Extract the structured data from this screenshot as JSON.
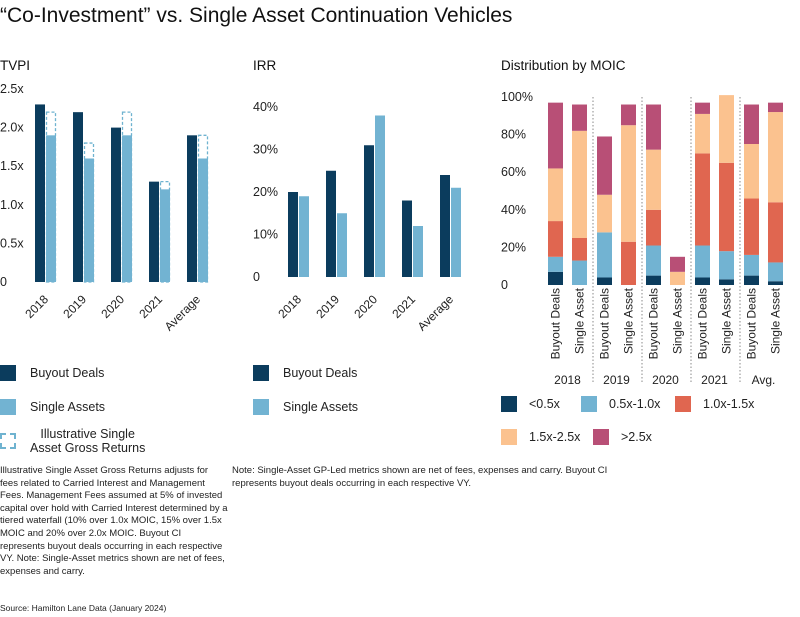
{
  "title": "“Co-Investment” vs. Single Asset Continuation Vehicles",
  "colors": {
    "buyout": "#0b3c5d",
    "single": "#72b3d2",
    "illustrative": "#6fb3d0",
    "lt05": "#0b3c5d",
    "b05_10": "#72b3d2",
    "b10_15": "#e06650",
    "b15_25": "#fbc28f",
    "gt25": "#b84f76",
    "divider": "#8a8a8a"
  },
  "chart_data": [
    {
      "type": "bar",
      "title": "TVPI",
      "categories": [
        "2018",
        "2019",
        "2020",
        "2021",
        "Average"
      ],
      "series": [
        {
          "name": "Buyout Deals",
          "values": [
            2.3,
            2.2,
            2.0,
            1.3,
            1.9
          ]
        },
        {
          "name": "Single Assets",
          "values": [
            1.9,
            1.6,
            1.9,
            1.2,
            1.6
          ]
        },
        {
          "name": "Illustrative Single Asset Gross Returns",
          "values": [
            2.2,
            1.8,
            2.2,
            1.3,
            1.9
          ]
        }
      ],
      "yticks": [
        "2.5x",
        "2.0x",
        "1.5x",
        "1.0x",
        "0.5x",
        "0"
      ],
      "ylim": [
        0,
        2.5
      ],
      "grid": false
    },
    {
      "type": "bar",
      "title": "IRR",
      "categories": [
        "2018",
        "2019",
        "2020",
        "2021",
        "Average"
      ],
      "series": [
        {
          "name": "Buyout Deals",
          "values": [
            20,
            25,
            31,
            18,
            24
          ]
        },
        {
          "name": "Single Assets",
          "values": [
            19,
            15,
            38,
            12,
            21
          ]
        }
      ],
      "yticks": [
        "40%",
        "30%",
        "20%",
        "10%",
        "0"
      ],
      "ylim": [
        0,
        45
      ],
      "grid": false
    },
    {
      "type": "bar",
      "stacked": true,
      "title": "Distribution by MOIC",
      "groups": [
        "2018",
        "2019",
        "2020",
        "2021",
        "Avg."
      ],
      "categories": [
        "Buyout Deals",
        "Single Asset"
      ],
      "series": [
        {
          "name": "<0.5x",
          "values": [
            [
              7,
              0
            ],
            [
              4,
              0
            ],
            [
              5,
              0
            ],
            [
              4,
              3
            ],
            [
              5,
              2
            ]
          ]
        },
        {
          "name": "0.5x-1.0x",
          "values": [
            [
              8,
              13
            ],
            [
              24,
              0
            ],
            [
              16,
              0
            ],
            [
              17,
              15
            ],
            [
              11,
              10
            ]
          ]
        },
        {
          "name": "1.0x-1.5x",
          "values": [
            [
              19,
              12
            ],
            [
              0,
              23
            ],
            [
              19,
              0
            ],
            [
              49,
              47
            ],
            [
              30,
              32
            ]
          ]
        },
        {
          "name": "1.5x-2.5x",
          "values": [
            [
              28,
              57
            ],
            [
              20,
              62
            ],
            [
              32,
              7
            ],
            [
              21,
              36
            ],
            [
              29,
              48
            ]
          ]
        },
        {
          "name": ">2.5x",
          "values": [
            [
              35,
              14
            ],
            [
              31,
              11
            ],
            [
              24,
              8
            ],
            [
              6,
              0
            ],
            [
              21,
              5
            ]
          ]
        }
      ],
      "yticks": [
        "100%",
        "80%",
        "60%",
        "40%",
        "20%",
        "0"
      ],
      "ylim": [
        0,
        100
      ],
      "grid": false
    }
  ],
  "legends": {
    "tvpi": [
      {
        "label": "Buyout Deals",
        "color_key": "buyout",
        "style": "solid"
      },
      {
        "label": "Single Assets",
        "color_key": "single",
        "style": "solid"
      },
      {
        "label": "Illustrative Single\nAsset Gross Returns",
        "color_key": "illustrative",
        "style": "dashed"
      }
    ],
    "irr": [
      {
        "label": "Buyout Deals",
        "color_key": "buyout"
      },
      {
        "label": "Single Assets",
        "color_key": "single"
      }
    ],
    "moic": [
      {
        "label": "<0.5x",
        "color_key": "lt05"
      },
      {
        "label": "0.5x-1.0x",
        "color_key": "b05_10"
      },
      {
        "label": "1.0x-1.5x",
        "color_key": "b10_15"
      },
      {
        "label": "1.5x-2.5x",
        "color_key": "b15_25"
      },
      {
        "label": ">2.5x",
        "color_key": "gt25"
      }
    ]
  },
  "notes": {
    "left": "Illustrative Single Asset Gross Returns adjusts for fees related to Carried Interest and Management Fees. Management Fees assumed at 5% of invested capital over hold with Carried Interest determined by a tiered waterfall (10% over 1.0x MOIC, 15% over 1.5x MOIC and 20% over 2.0x MOIC. Buyout CI represents buyout deals occurring in each respective VY. Note: Single-Asset metrics shown are net of fees, expenses and carry.",
    "right": "Note: Single-Asset GP-Led metrics shown are net of fees, expenses and carry. Buyout CI represents buyout deals occurring in each respective VY."
  },
  "source": "Source: Hamilton Lane Data (January 2024)"
}
